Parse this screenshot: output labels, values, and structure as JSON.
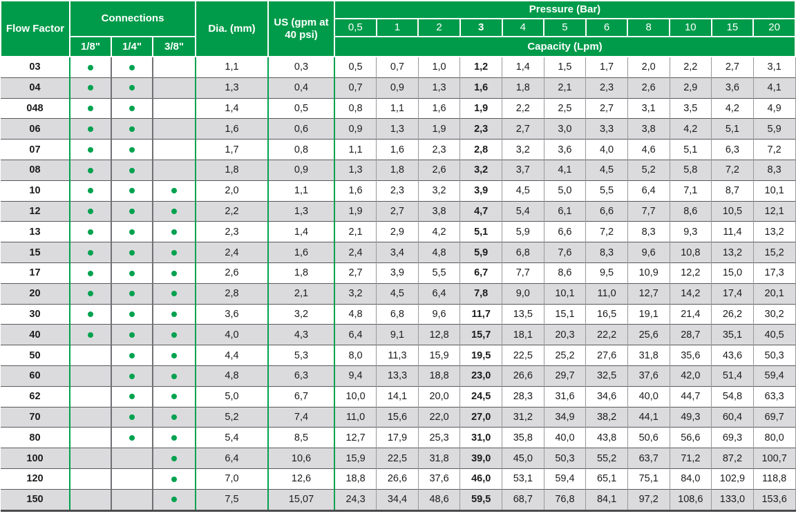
{
  "colors": {
    "header_green": "#009B4A",
    "accent_green": "#00A24F",
    "stripe_gray": "#DBDBDD"
  },
  "table": {
    "headers": {
      "flow_factor": "Flow Factor",
      "connections": "Connections",
      "connection_sizes": [
        "1/8\"",
        "1/4\"",
        "3/8\""
      ],
      "dia": "Dia. (mm)",
      "us": "US (gpm at 40 psi)",
      "pressure": "Pressure (Bar)",
      "pressure_values": [
        "0,5",
        "1",
        "2",
        "3",
        "4",
        "5",
        "6",
        "8",
        "10",
        "15",
        "20"
      ],
      "capacity": "Capacity (Lpm)"
    },
    "rows": [
      {
        "flow_factor": "03",
        "connections": [
          true,
          true,
          false
        ],
        "dia": "1,1",
        "us": "0,3",
        "cap": [
          "0,5",
          "0,7",
          "1,0",
          "1,2",
          "1,4",
          "1,5",
          "1,7",
          "2,0",
          "2,2",
          "2,7",
          "3,1"
        ]
      },
      {
        "flow_factor": "04",
        "connections": [
          true,
          true,
          false
        ],
        "dia": "1,3",
        "us": "0,4",
        "cap": [
          "0,7",
          "0,9",
          "1,3",
          "1,6",
          "1,8",
          "2,1",
          "2,3",
          "2,6",
          "2,9",
          "3,6",
          "4,1"
        ]
      },
      {
        "flow_factor": "048",
        "connections": [
          true,
          true,
          false
        ],
        "dia": "1,4",
        "us": "0,5",
        "cap": [
          "0,8",
          "1,1",
          "1,6",
          "1,9",
          "2,2",
          "2,5",
          "2,7",
          "3,1",
          "3,5",
          "4,2",
          "4,9"
        ]
      },
      {
        "flow_factor": "06",
        "connections": [
          true,
          true,
          false
        ],
        "dia": "1,6",
        "us": "0,6",
        "cap": [
          "0,9",
          "1,3",
          "1,9",
          "2,3",
          "2,7",
          "3,0",
          "3,3",
          "3,8",
          "4,2",
          "5,1",
          "5,9"
        ]
      },
      {
        "flow_factor": "07",
        "connections": [
          true,
          true,
          false
        ],
        "dia": "1,7",
        "us": "0,8",
        "cap": [
          "1,1",
          "1,6",
          "2,3",
          "2,8",
          "3,2",
          "3,6",
          "4,0",
          "4,6",
          "5,1",
          "6,3",
          "7,2"
        ]
      },
      {
        "flow_factor": "08",
        "connections": [
          true,
          true,
          false
        ],
        "dia": "1,8",
        "us": "0,9",
        "cap": [
          "1,3",
          "1,8",
          "2,6",
          "3,2",
          "3,7",
          "4,1",
          "4,5",
          "5,2",
          "5,8",
          "7,2",
          "8,3"
        ]
      },
      {
        "flow_factor": "10",
        "connections": [
          true,
          true,
          true
        ],
        "dia": "2,0",
        "us": "1,1",
        "cap": [
          "1,6",
          "2,3",
          "3,2",
          "3,9",
          "4,5",
          "5,0",
          "5,5",
          "6,4",
          "7,1",
          "8,7",
          "10,1"
        ]
      },
      {
        "flow_factor": "12",
        "connections": [
          true,
          true,
          true
        ],
        "dia": "2,2",
        "us": "1,3",
        "cap": [
          "1,9",
          "2,7",
          "3,8",
          "4,7",
          "5,4",
          "6,1",
          "6,6",
          "7,7",
          "8,6",
          "10,5",
          "12,1"
        ]
      },
      {
        "flow_factor": "13",
        "connections": [
          true,
          true,
          true
        ],
        "dia": "2,3",
        "us": "1,4",
        "cap": [
          "2,1",
          "2,9",
          "4,2",
          "5,1",
          "5,9",
          "6,6",
          "7,2",
          "8,3",
          "9,3",
          "11,4",
          "13,2"
        ]
      },
      {
        "flow_factor": "15",
        "connections": [
          true,
          true,
          true
        ],
        "dia": "2,4",
        "us": "1,6",
        "cap": [
          "2,4",
          "3,4",
          "4,8",
          "5,9",
          "6,8",
          "7,6",
          "8,3",
          "9,6",
          "10,8",
          "13,2",
          "15,2"
        ]
      },
      {
        "flow_factor": "17",
        "connections": [
          true,
          true,
          true
        ],
        "dia": "2,6",
        "us": "1,8",
        "cap": [
          "2,7",
          "3,9",
          "5,5",
          "6,7",
          "7,7",
          "8,6",
          "9,5",
          "10,9",
          "12,2",
          "15,0",
          "17,3"
        ]
      },
      {
        "flow_factor": "20",
        "connections": [
          true,
          true,
          true
        ],
        "dia": "2,8",
        "us": "2,1",
        "cap": [
          "3,2",
          "4,5",
          "6,4",
          "7,8",
          "9,0",
          "10,1",
          "11,0",
          "12,7",
          "14,2",
          "17,4",
          "20,1"
        ]
      },
      {
        "flow_factor": "30",
        "connections": [
          true,
          true,
          true
        ],
        "dia": "3,6",
        "us": "3,2",
        "cap": [
          "4,8",
          "6,8",
          "9,6",
          "11,7",
          "13,5",
          "15,1",
          "16,5",
          "19,1",
          "21,4",
          "26,2",
          "30,2"
        ]
      },
      {
        "flow_factor": "40",
        "connections": [
          true,
          true,
          true
        ],
        "dia": "4,0",
        "us": "4,3",
        "cap": [
          "6,4",
          "9,1",
          "12,8",
          "15,7",
          "18,1",
          "20,3",
          "22,2",
          "25,6",
          "28,7",
          "35,1",
          "40,5"
        ]
      },
      {
        "flow_factor": "50",
        "connections": [
          false,
          true,
          true
        ],
        "dia": "4,4",
        "us": "5,3",
        "cap": [
          "8,0",
          "11,3",
          "15,9",
          "19,5",
          "22,5",
          "25,2",
          "27,6",
          "31,8",
          "35,6",
          "43,6",
          "50,3"
        ]
      },
      {
        "flow_factor": "60",
        "connections": [
          false,
          true,
          true
        ],
        "dia": "4,8",
        "us": "6,3",
        "cap": [
          "9,4",
          "13,3",
          "18,8",
          "23,0",
          "26,6",
          "29,7",
          "32,5",
          "37,6",
          "42,0",
          "51,4",
          "59,4"
        ]
      },
      {
        "flow_factor": "62",
        "connections": [
          false,
          true,
          true
        ],
        "dia": "5,0",
        "us": "6,7",
        "cap": [
          "10,0",
          "14,1",
          "20,0",
          "24,5",
          "28,3",
          "31,6",
          "34,6",
          "40,0",
          "44,7",
          "54,8",
          "63,3"
        ]
      },
      {
        "flow_factor": "70",
        "connections": [
          false,
          true,
          true
        ],
        "dia": "5,2",
        "us": "7,4",
        "cap": [
          "11,0",
          "15,6",
          "22,0",
          "27,0",
          "31,2",
          "34,9",
          "38,2",
          "44,1",
          "49,3",
          "60,4",
          "69,7"
        ]
      },
      {
        "flow_factor": "80",
        "connections": [
          false,
          true,
          true
        ],
        "dia": "5,4",
        "us": "8,5",
        "cap": [
          "12,7",
          "17,9",
          "25,3",
          "31,0",
          "35,8",
          "40,0",
          "43,8",
          "50,6",
          "56,6",
          "69,3",
          "80,0"
        ]
      },
      {
        "flow_factor": "100",
        "connections": [
          false,
          false,
          true
        ],
        "dia": "6,4",
        "us": "10,6",
        "cap": [
          "15,9",
          "22,5",
          "31,8",
          "39,0",
          "45,0",
          "50,3",
          "55,2",
          "63,7",
          "71,2",
          "87,2",
          "100,7"
        ]
      },
      {
        "flow_factor": "120",
        "connections": [
          false,
          false,
          true
        ],
        "dia": "7,0",
        "us": "12,6",
        "cap": [
          "18,8",
          "26,6",
          "37,6",
          "46,0",
          "53,1",
          "59,4",
          "65,1",
          "75,1",
          "84,0",
          "102,9",
          "118,8"
        ]
      },
      {
        "flow_factor": "150",
        "connections": [
          false,
          false,
          true
        ],
        "dia": "7,5",
        "us": "15,07",
        "cap": [
          "24,3",
          "34,4",
          "48,6",
          "59,5",
          "68,7",
          "76,8",
          "84,1",
          "97,2",
          "108,6",
          "133,0",
          "153,6"
        ]
      }
    ]
  }
}
